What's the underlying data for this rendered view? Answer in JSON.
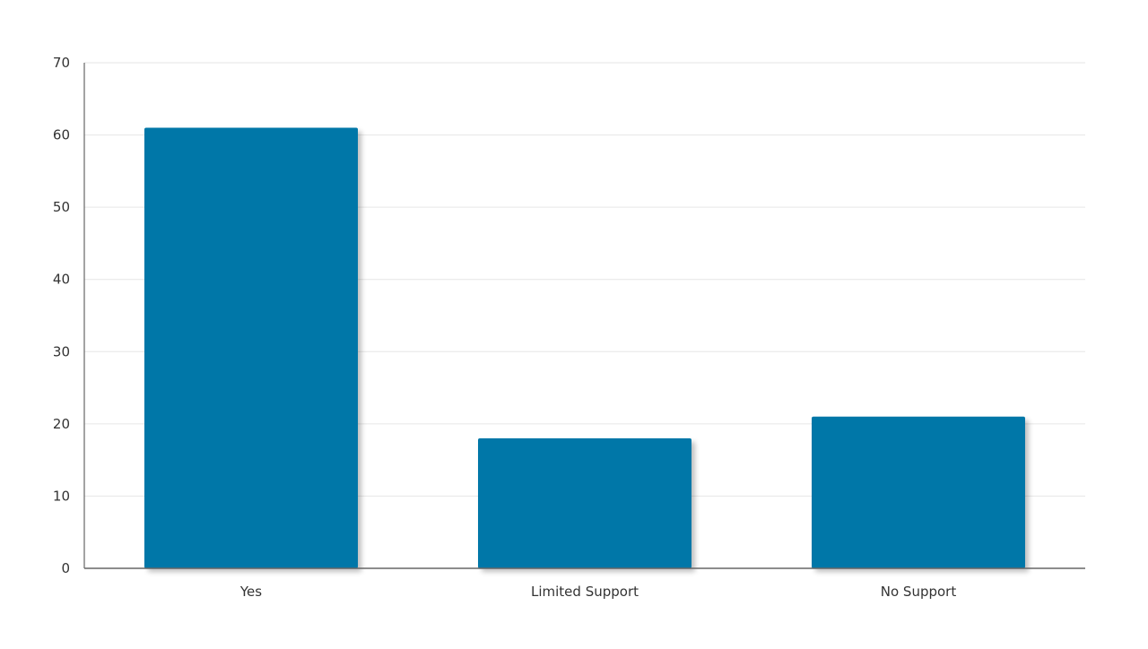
{
  "chart_data": {
    "type": "bar",
    "title": "",
    "xlabel": "",
    "ylabel": "",
    "categories": [
      "Yes",
      "Limited Support",
      "No Support"
    ],
    "series": [
      {
        "values": [
          61,
          18,
          21
        ]
      }
    ],
    "ylim": [
      0,
      70
    ],
    "yticks": [
      0,
      10,
      20,
      30,
      40,
      50,
      60,
      70
    ],
    "grid": true,
    "legend": "none",
    "colors": {
      "bar": "#0077a8",
      "grid": "#e6e6e6",
      "axis": "#666666",
      "text": "#333333"
    }
  }
}
